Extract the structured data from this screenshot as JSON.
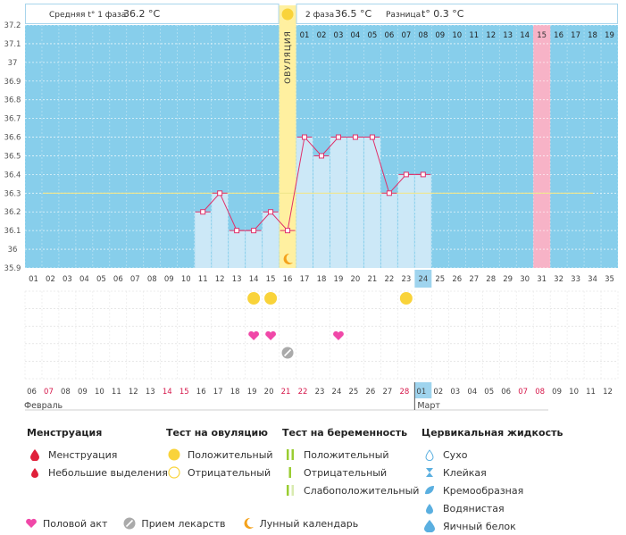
{
  "chart_data": {
    "type": "line",
    "ylabel": "°C",
    "y_ticks": [
      "35.9",
      "36",
      "36.1",
      "36.2",
      "36.3",
      "36.4",
      "36.5",
      "36.6",
      "36.7",
      "36.8",
      "36.9",
      "37",
      "37.1",
      "37.2"
    ],
    "ylim": [
      35.9,
      37.2
    ],
    "cycle_days": [
      "01",
      "02",
      "03",
      "04",
      "05",
      "06",
      "07",
      "08",
      "09",
      "10",
      "11",
      "12",
      "13",
      "14",
      "15",
      "16",
      "17",
      "18",
      "19",
      "20",
      "21",
      "22",
      "23",
      "24",
      "25",
      "26",
      "27",
      "28",
      "29",
      "30",
      "31",
      "32",
      "33",
      "34",
      "35"
    ],
    "today_day": 24,
    "ovulation_day": 16,
    "highlight_day": 31,
    "temperatures": [
      {
        "day": 11,
        "value": 36.2
      },
      {
        "day": 12,
        "value": 36.3
      },
      {
        "day": 13,
        "value": 36.1
      },
      {
        "day": 14,
        "value": 36.1
      },
      {
        "day": 15,
        "value": 36.2
      },
      {
        "day": 16,
        "value": 36.1
      },
      {
        "day": 17,
        "value": 36.6
      },
      {
        "day": 18,
        "value": 36.5
      },
      {
        "day": 19,
        "value": 36.6
      },
      {
        "day": 20,
        "value": 36.6
      },
      {
        "day": 21,
        "value": 36.6
      },
      {
        "day": 22,
        "value": 36.3
      },
      {
        "day": 23,
        "value": 36.4
      },
      {
        "day": 24,
        "value": 36.4
      }
    ],
    "coverline": 36.3,
    "phase1_label": "Средняя t° 1 фаза",
    "phase1_value": "36.2 °C",
    "phase2_label": "2 фаза",
    "phase2_value": "36.5 °C",
    "difference_label": "Разница",
    "difference_value": "t° 0.3 °C",
    "ovulation_label": "ОВУЛЯЦИЯ",
    "phase2_day_labels": [
      "01",
      "02",
      "03",
      "04",
      "05",
      "06",
      "07",
      "08",
      "09",
      "10",
      "11",
      "12",
      "13",
      "14",
      "15",
      "16",
      "17",
      "18",
      "19"
    ],
    "highlighted_phase2_day": "15",
    "ovulation_tests_positive_days": [
      14,
      15,
      23
    ],
    "intercourse_days": [
      14,
      15,
      19
    ],
    "medication_days": [
      16
    ],
    "moon_days": [
      16
    ],
    "dates": [
      "06",
      "07",
      "08",
      "09",
      "10",
      "11",
      "12",
      "13",
      "14",
      "15",
      "16",
      "17",
      "18",
      "19",
      "20",
      "21",
      "22",
      "23",
      "24",
      "25",
      "26",
      "27",
      "28",
      "01",
      "02",
      "03",
      "04",
      "05",
      "06",
      "07",
      "08",
      "09",
      "10",
      "11",
      "12"
    ],
    "red_date_indices": [
      1,
      8,
      9,
      15,
      16,
      22,
      29,
      30
    ],
    "current_date_index": 23,
    "month_left": "Февраль",
    "month_right": "Март",
    "colors": {
      "sky": "#87CEEB",
      "bar": "#CCE8F7",
      "line": "#E0306A",
      "ovulation": "#FFF0A0",
      "pink_column": "#F7B3C7",
      "coverline": "#F0E68C",
      "red_text": "#D6184B"
    }
  },
  "legend": {
    "menstruation": {
      "title": "Менструация",
      "items": [
        "Менструация",
        "Небольшие выделения"
      ]
    },
    "ovulation_test": {
      "title": "Тест на овуляцию",
      "items": [
        "Положительный",
        "Отрицательный"
      ]
    },
    "pregnancy_test": {
      "title": "Тест на беременность",
      "items": [
        "Положительный",
        "Отрицательный",
        "Слабоположительный"
      ]
    },
    "cervical_fluid": {
      "title": "Цервикальная жидкость",
      "items": [
        "Сухо",
        "Клейкая",
        "Кремообразная",
        "Водянистая",
        "Яичный белок"
      ]
    },
    "bottom": [
      "Половой акт",
      "Прием лекарств",
      "Лунный календарь"
    ]
  }
}
